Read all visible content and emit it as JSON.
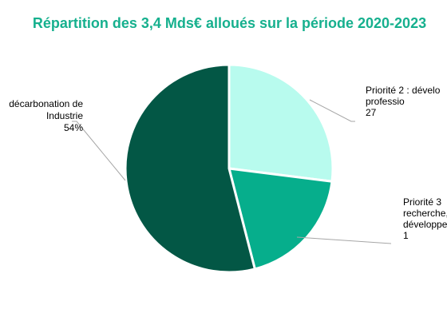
{
  "chart_data": {
    "type": "pie",
    "title": "Répartition des 3,4 Mds€ alloués sur la période 2020-2023",
    "legend": "none",
    "slices": [
      {
        "label_lines": [
          "Priorité 2 : dévelo",
          "professio",
          "27"
        ],
        "value": 27,
        "color": "#b8fbee"
      },
      {
        "label_lines": [
          "Priorité 3",
          "recherche, à l",
          "développemen",
          "1"
        ],
        "value": 19,
        "color": "#06ae8c"
      },
      {
        "label_lines": [
          " décarbonation de",
          "Industrie",
          "54%"
        ],
        "value": 54,
        "color": "#035745"
      }
    ]
  }
}
